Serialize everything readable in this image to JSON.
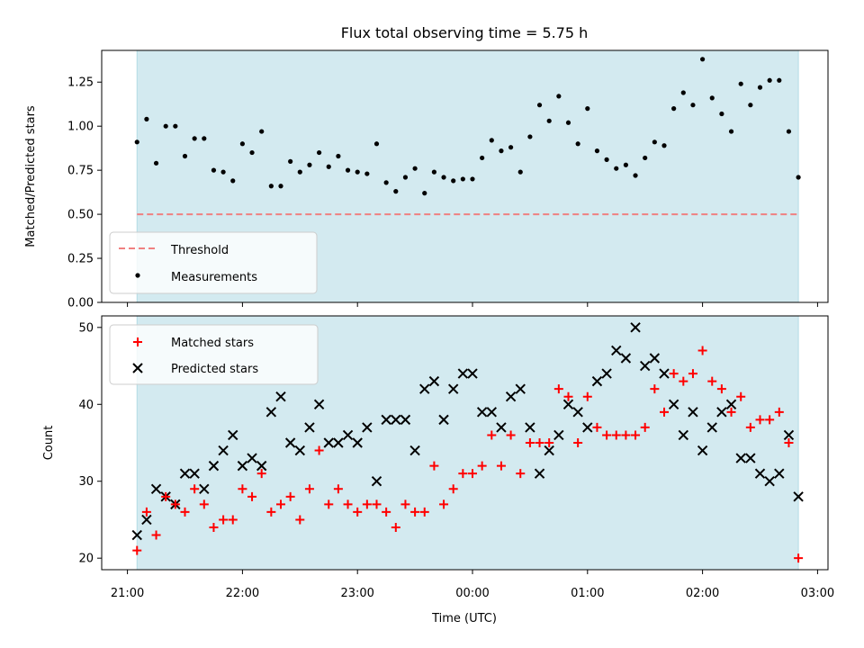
{
  "chart_data": [
    {
      "type": "scatter",
      "title": "Flux total observing time = 5.75 h",
      "xlabel": "",
      "ylabel": "Matched/Predicted stars",
      "ylim": [
        0,
        1.43
      ],
      "yticks": [
        "0.00",
        "0.25",
        "0.50",
        "0.75",
        "1.00",
        "1.25"
      ],
      "legend": "lower-left",
      "shaded_region": {
        "color": "#d3eaf0",
        "x_start": "21:05",
        "x_end": "02:50"
      },
      "threshold": {
        "name": "Threshold",
        "value": 0.5,
        "color": "#f08080",
        "style": "dashed"
      },
      "series": [
        {
          "name": "Measurements",
          "marker": "dot",
          "color": "#000000",
          "values": [
            0.91,
            1.04,
            0.79,
            1.0,
            1.0,
            0.83,
            0.93,
            0.93,
            0.75,
            0.74,
            0.69,
            0.9,
            0.85,
            0.97,
            0.66,
            0.66,
            0.8,
            0.74,
            0.78,
            0.85,
            0.77,
            0.83,
            0.75,
            0.74,
            0.73,
            0.9,
            0.68,
            0.63,
            0.71,
            0.76,
            0.62,
            0.74,
            0.71,
            0.69,
            0.7,
            0.7,
            0.82,
            0.92,
            0.86,
            0.88,
            0.74,
            0.94,
            1.12,
            1.03,
            1.17,
            1.02,
            0.9,
            1.1,
            0.86,
            0.81,
            0.76,
            0.78,
            0.72,
            0.82,
            0.91,
            0.89,
            1.1,
            1.19,
            1.12,
            1.38,
            1.16,
            1.07,
            0.97,
            1.24,
            1.12,
            1.22,
            1.26,
            1.26,
            0.97,
            0.71
          ]
        }
      ]
    },
    {
      "type": "scatter",
      "title": "",
      "xlabel": "Time (UTC)",
      "ylabel": "Count",
      "ylim": [
        18.5,
        51.5
      ],
      "yticks": [
        "20",
        "30",
        "40",
        "50"
      ],
      "xticks": [
        "21:00",
        "22:00",
        "23:00",
        "00:00",
        "01:00",
        "02:00",
        "03:00"
      ],
      "legend": "upper-left",
      "shaded_region": {
        "color": "#d3eaf0",
        "x_start": "21:05",
        "x_end": "02:50"
      },
      "series": [
        {
          "name": "Matched stars",
          "marker": "plus",
          "color": "#ff0000",
          "values": [
            21,
            26,
            23,
            28,
            27,
            26,
            29,
            27,
            24,
            25,
            25,
            29,
            28,
            31,
            26,
            27,
            28,
            25,
            29,
            34,
            27,
            29,
            27,
            26,
            27,
            27,
            26,
            24,
            27,
            26,
            26,
            32,
            27,
            29,
            31,
            31,
            32,
            36,
            32,
            36,
            31,
            35,
            35,
            35,
            42,
            41,
            35,
            41,
            37,
            36,
            36,
            36,
            36,
            37,
            42,
            39,
            44,
            43,
            44,
            47,
            43,
            42,
            39,
            41,
            37,
            38,
            38,
            39,
            35,
            20
          ]
        },
        {
          "name": "Predicted stars",
          "marker": "x",
          "color": "#000000",
          "values": [
            23,
            25,
            29,
            28,
            27,
            31,
            31,
            29,
            32,
            34,
            36,
            32,
            33,
            32,
            39,
            41,
            35,
            34,
            37,
            40,
            35,
            35,
            36,
            35,
            37,
            30,
            38,
            38,
            38,
            34,
            42,
            43,
            38,
            42,
            44,
            44,
            39,
            39,
            37,
            41,
            42,
            37,
            31,
            34,
            36,
            40,
            39,
            37,
            43,
            44,
            47,
            46,
            50,
            45,
            46,
            44,
            40,
            36,
            39,
            34,
            37,
            39,
            40,
            33,
            33,
            31,
            30,
            31,
            36,
            28
          ]
        }
      ]
    }
  ],
  "time_axis": {
    "start": "21:05",
    "end": "02:50",
    "n_points": 70
  }
}
